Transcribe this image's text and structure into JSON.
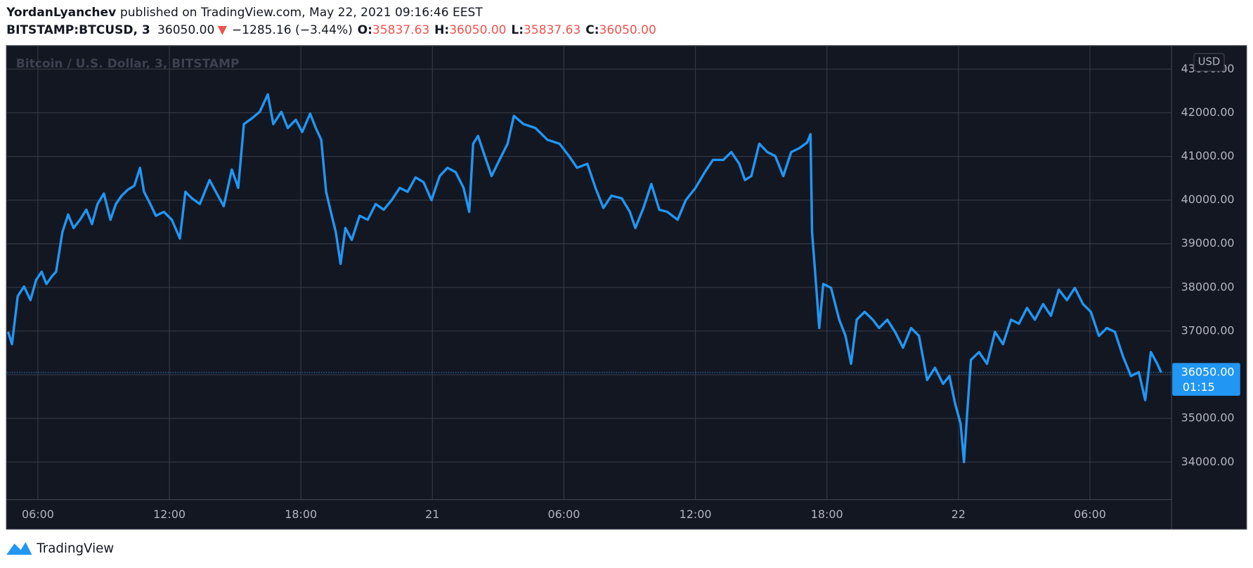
{
  "header": {
    "author": "YordanLyanchev",
    "published": "published on TradingView.com, May 22, 2021 09:16:46 EEST",
    "symbol": "BITSTAMP:BTCUSD, 3",
    "last": "36050.00",
    "change_arrow": "▼",
    "change": "−1285.16 (−3.44%)",
    "ohlc": [
      {
        "label": "O:",
        "value": "35837.63"
      },
      {
        "label": "H:",
        "value": "36050.00"
      },
      {
        "label": "L:",
        "value": "35837.63"
      },
      {
        "label": "C:",
        "value": "36050.00"
      }
    ]
  },
  "chart_data": {
    "type": "line",
    "title": "Bitcoin / U.S. Dollar, 3, BITSTAMP",
    "currency": "USD",
    "last_price_label": "36050.00",
    "countdown": "01:15",
    "color": "#2196f3",
    "grid": true,
    "xlim": [
      -19.4,
      33.72
    ],
    "ylim": [
      33140,
      43520
    ],
    "xticks": [
      {
        "value": -18,
        "label": "06:00"
      },
      {
        "value": -12,
        "label": "12:00"
      },
      {
        "value": -6,
        "label": "18:00"
      },
      {
        "value": 0,
        "label": "21"
      },
      {
        "value": 6,
        "label": "06:00"
      },
      {
        "value": 12,
        "label": "12:00"
      },
      {
        "value": 18,
        "label": "18:00"
      },
      {
        "value": 24,
        "label": "22"
      },
      {
        "value": 30,
        "label": "06:00"
      }
    ],
    "yticks": [
      {
        "value": 34000,
        "label": "34000.00"
      },
      {
        "value": 35000,
        "label": "35000.00"
      },
      {
        "value": 36000,
        "label": "36000.00"
      },
      {
        "value": 37000,
        "label": "37000.00"
      },
      {
        "value": 38000,
        "label": "38000.00"
      },
      {
        "value": 39000,
        "label": "39000.00"
      },
      {
        "value": 40000,
        "label": "40000.00"
      },
      {
        "value": 41000,
        "label": "41000.00"
      },
      {
        "value": 42000,
        "label": "42000.00"
      },
      {
        "value": 43000,
        "label": "43000.00"
      }
    ],
    "x": [
      -19.36,
      -19.18,
      -18.92,
      -18.63,
      -18.34,
      -18.08,
      -17.83,
      -17.61,
      -17.35,
      -17.17,
      -16.88,
      -16.62,
      -16.37,
      -16.08,
      -15.79,
      -15.53,
      -15.28,
      -14.99,
      -14.69,
      -14.44,
      -14.18,
      -13.89,
      -13.6,
      -13.34,
      -13.16,
      -12.87,
      -12.62,
      -12.25,
      -11.89,
      -11.52,
      -11.27,
      -10.97,
      -10.61,
      -10.17,
      -9.88,
      -9.52,
      -9.15,
      -8.86,
      -8.6,
      -8.24,
      -7.88,
      -7.51,
      -7.26,
      -6.89,
      -6.6,
      -6.23,
      -5.94,
      -5.58,
      -5.32,
      -5.07,
      -4.85,
      -4.59,
      -4.41,
      -4.19,
      -3.97,
      -3.68,
      -3.32,
      -2.95,
      -2.59,
      -2.22,
      -1.86,
      -1.49,
      -1.13,
      -0.77,
      -0.4,
      -0.04,
      0.33,
      0.69,
      1.06,
      1.42,
      1.68,
      1.86,
      2.08,
      2.33,
      2.7,
      3.06,
      3.43,
      3.72,
      4.16,
      4.7,
      5.25,
      5.8,
      6.23,
      6.6,
      7.07,
      7.44,
      7.8,
      8.17,
      8.64,
      9.01,
      9.26,
      9.63,
      9.99,
      10.35,
      10.72,
      11.19,
      11.56,
      12.0,
      12.43,
      12.8,
      13.27,
      13.64,
      14.0,
      14.26,
      14.55,
      14.91,
      15.28,
      15.64,
      16.01,
      16.37,
      16.74,
      17.1,
      17.25,
      17.32,
      17.46,
      17.65,
      17.83,
      18.19,
      18.56,
      18.85,
      19.1,
      19.36,
      19.72,
      20.09,
      20.38,
      20.75,
      21.11,
      21.47,
      21.84,
      22.2,
      22.57,
      22.93,
      23.3,
      23.59,
      23.85,
      24.1,
      24.25,
      24.39,
      24.57,
      24.94,
      25.3,
      25.67,
      26.03,
      26.4,
      26.76,
      27.13,
      27.49,
      27.86,
      28.22,
      28.58,
      28.95,
      29.31,
      29.68,
      30.04,
      30.41,
      30.77,
      31.14,
      31.5,
      31.87,
      32.23,
      32.52,
      32.78,
      33.07,
      33.25
    ],
    "values": [
      36980,
      36700,
      37800,
      38020,
      37710,
      38170,
      38360,
      38080,
      38260,
      38360,
      39270,
      39670,
      39360,
      39550,
      39780,
      39450,
      39910,
      40150,
      39550,
      39910,
      40100,
      40240,
      40330,
      40740,
      40190,
      39910,
      39640,
      39730,
      39550,
      39120,
      40190,
      40040,
      39910,
      40460,
      40190,
      39860,
      40700,
      40280,
      41740,
      41870,
      42020,
      42420,
      41740,
      42020,
      41650,
      41840,
      41560,
      41980,
      41650,
      41380,
      40190,
      39640,
      39270,
      38540,
      39360,
      39090,
      39640,
      39550,
      39910,
      39780,
      40000,
      40280,
      40190,
      40520,
      40410,
      40000,
      40550,
      40740,
      40640,
      40280,
      39730,
      41290,
      41470,
      41100,
      40550,
      40920,
      41290,
      41930,
      41740,
      41650,
      41380,
      41290,
      41010,
      40740,
      40830,
      40280,
      39820,
      40100,
      40040,
      39730,
      39360,
      39820,
      40370,
      39780,
      39730,
      39550,
      40000,
      40280,
      40640,
      40920,
      40920,
      41100,
      40830,
      40460,
      40550,
      41290,
      41100,
      41010,
      40550,
      41100,
      41190,
      41320,
      41510,
      39270,
      38360,
      37070,
      38080,
      37990,
      37260,
      36890,
      36250,
      37260,
      37440,
      37260,
      37070,
      37260,
      36980,
      36620,
      37070,
      36890,
      35880,
      36160,
      35790,
      35970,
      35330,
      34880,
      34000,
      35060,
      36340,
      36520,
      36250,
      36980,
      36700,
      37260,
      37170,
      37530,
      37260,
      37620,
      37350,
      37950,
      37710,
      37990,
      37620,
      37440,
      36890,
      37070,
      36980,
      36430,
      35970,
      36060,
      35420,
      36520,
      36250,
      36050
    ]
  },
  "footer": {
    "brand": "TradingView"
  }
}
